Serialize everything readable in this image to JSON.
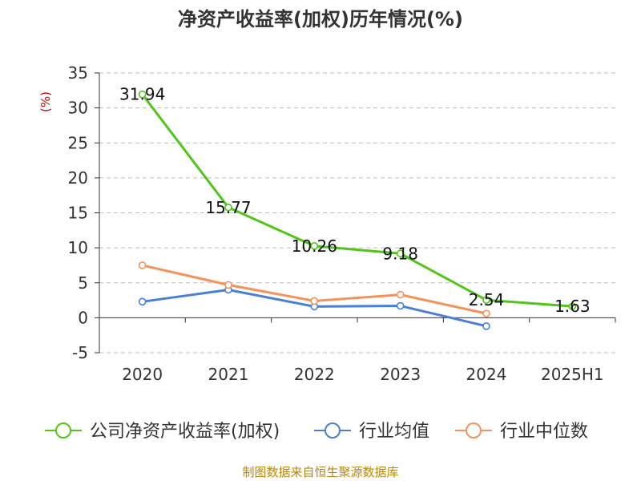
{
  "colors": {
    "series_company": "#52c41a",
    "series_avg": "#4a7fd6",
    "series_median": "#f5925a",
    "axis": "#333333",
    "grid": "#bbbbbb",
    "unit": "#cc0000",
    "footer": "#b8860b"
  },
  "chart_data": {
    "type": "line",
    "title": "净资产收益率(加权)历年情况(%)",
    "ylabel": "(%)",
    "categories": [
      "2020",
      "2021",
      "2022",
      "2023",
      "2024",
      "2025H1"
    ],
    "ylim": [
      -5,
      35
    ],
    "yticks": [
      -5,
      0,
      5,
      10,
      15,
      20,
      25,
      30,
      35
    ],
    "grid": true,
    "legend_position": "bottom",
    "series": [
      {
        "name": "公司净资产收益率(加权)",
        "values": [
          31.94,
          15.77,
          10.26,
          9.18,
          2.54,
          1.63
        ],
        "show_labels": true,
        "data_labels": [
          "31.94",
          "15.77",
          "10.26",
          "9.18",
          "2.54",
          "1.63"
        ]
      },
      {
        "name": "行业均值",
        "values": [
          2.3,
          4.0,
          1.6,
          1.7,
          -1.2,
          null
        ],
        "show_labels": false
      },
      {
        "name": "行业中位数",
        "values": [
          7.5,
          4.7,
          2.4,
          3.3,
          0.6,
          null
        ],
        "show_labels": false
      }
    ]
  },
  "footer": "制图数据来自恒生聚源数据库"
}
